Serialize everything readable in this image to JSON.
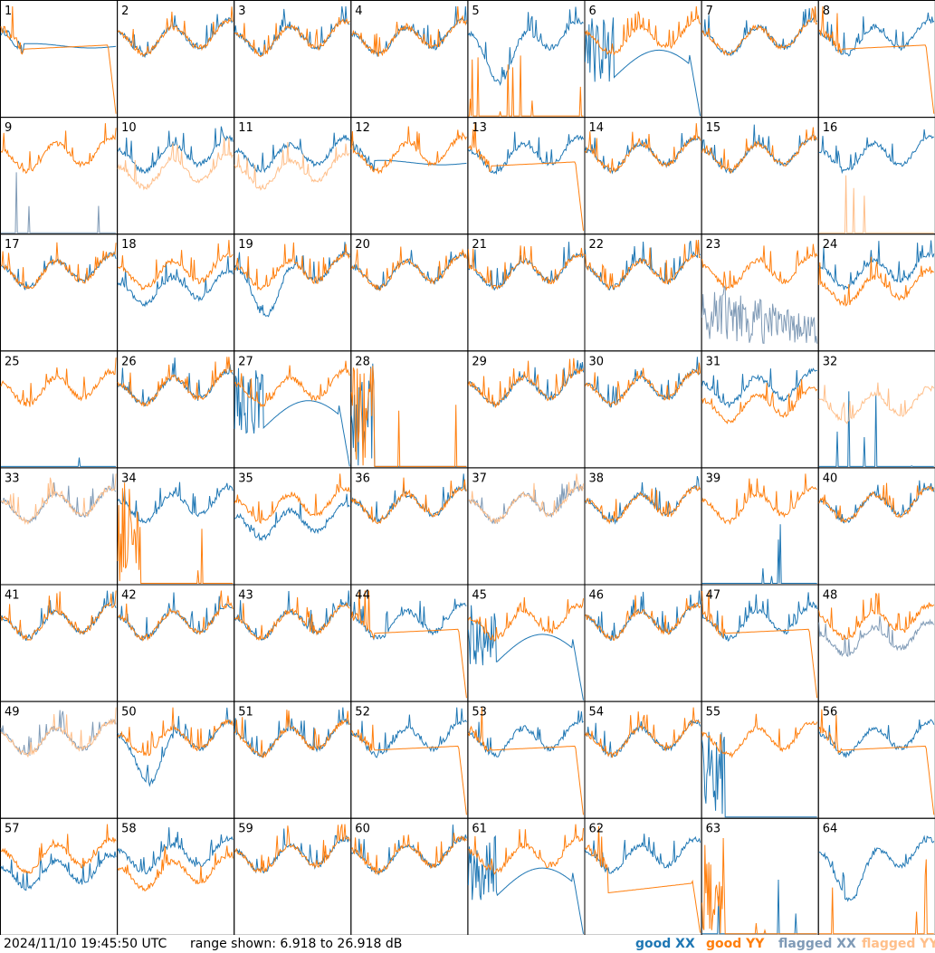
{
  "footer": {
    "timestamp": "2024/11/10 19:45:50 UTC",
    "range_text": "range shown: 6.918 to 26.918 dB"
  },
  "legend": [
    {
      "label": "good XX",
      "color": "#1f77b4"
    },
    {
      "label": "good YY",
      "color": "#ff7f0e"
    },
    {
      "label": "flagged XX",
      "color": "#7f9ab6"
    },
    {
      "label": "flagged YY",
      "color": "#ffbf8a"
    }
  ],
  "chart_data": {
    "type": "line",
    "grid": "8x8 small multiples",
    "y_range_db": [
      6.918,
      26.918
    ],
    "panels": [
      {
        "label": "1",
        "xx": "good",
        "yy": "good",
        "xx_shape": "ripple_lowbump",
        "yy_shape": "smooth_dropoff"
      },
      {
        "label": "2",
        "xx": "good",
        "yy": "good",
        "xx_shape": "ripple",
        "yy_shape": "ripple"
      },
      {
        "label": "3",
        "xx": "good",
        "yy": "good",
        "xx_shape": "ripple",
        "yy_shape": "ripple"
      },
      {
        "label": "4",
        "xx": "good",
        "yy": "good",
        "xx_shape": "ripple",
        "yy_shape": "ripple"
      },
      {
        "label": "5",
        "xx": "good",
        "yy": "good",
        "xx_shape": "ripple_dip",
        "yy_shape": "flat_spikes"
      },
      {
        "label": "6",
        "xx": "good",
        "yy": "good",
        "xx_shape": "smooth_dropoff_deep",
        "yy_shape": "ripple"
      },
      {
        "label": "7",
        "xx": "good",
        "yy": "good",
        "xx_shape": "ripple",
        "yy_shape": "ripple"
      },
      {
        "label": "8",
        "xx": "good",
        "yy": "good",
        "xx_shape": "ripple",
        "yy_shape": "smooth_dropoff"
      },
      {
        "label": "9",
        "xx": "flagged",
        "yy": "good",
        "xx_shape": "flat_spikes",
        "yy_shape": "ripple"
      },
      {
        "label": "10",
        "xx": "good",
        "yy": "flagged",
        "xx_shape": "ripple",
        "yy_shape": "ripple_low"
      },
      {
        "label": "11",
        "xx": "good",
        "yy": "flagged",
        "xx_shape": "ripple",
        "yy_shape": "ripple_low"
      },
      {
        "label": "12",
        "xx": "good",
        "yy": "good",
        "xx_shape": "ripple_lowbump",
        "yy_shape": "ripple"
      },
      {
        "label": "13",
        "xx": "good",
        "yy": "good",
        "xx_shape": "ripple",
        "yy_shape": "smooth_dropoff"
      },
      {
        "label": "14",
        "xx": "good",
        "yy": "good",
        "xx_shape": "ripple",
        "yy_shape": "ripple"
      },
      {
        "label": "15",
        "xx": "good",
        "yy": "good",
        "xx_shape": "ripple",
        "yy_shape": "ripple"
      },
      {
        "label": "16",
        "xx": "good",
        "yy": "flagged",
        "xx_shape": "ripple",
        "yy_shape": "flat_spikes"
      },
      {
        "label": "17",
        "xx": "good",
        "yy": "good",
        "xx_shape": "ripple",
        "yy_shape": "ripple"
      },
      {
        "label": "18",
        "xx": "good",
        "yy": "good",
        "xx_shape": "ripple_low",
        "yy_shape": "ripple"
      },
      {
        "label": "19",
        "xx": "good",
        "yy": "good",
        "xx_shape": "ripple_dip",
        "yy_shape": "ripple"
      },
      {
        "label": "20",
        "xx": "good",
        "yy": "good",
        "xx_shape": "ripple",
        "yy_shape": "ripple"
      },
      {
        "label": "21",
        "xx": "good",
        "yy": "good",
        "xx_shape": "ripple",
        "yy_shape": "ripple"
      },
      {
        "label": "22",
        "xx": "good",
        "yy": "good",
        "xx_shape": "ripple",
        "yy_shape": "ripple"
      },
      {
        "label": "23",
        "xx": "flagged",
        "yy": "good",
        "xx_shape": "noisy_low",
        "yy_shape": "ripple"
      },
      {
        "label": "24",
        "xx": "good",
        "yy": "good",
        "xx_shape": "ripple",
        "yy_shape": "ripple_low"
      },
      {
        "label": "25",
        "xx": "good",
        "yy": "good",
        "xx_shape": "flat_spikes",
        "yy_shape": "ripple"
      },
      {
        "label": "26",
        "xx": "good",
        "yy": "good",
        "xx_shape": "ripple",
        "yy_shape": "ripple"
      },
      {
        "label": "27",
        "xx": "good",
        "yy": "good",
        "xx_shape": "smooth_dropoff_deep",
        "yy_shape": "ripple"
      },
      {
        "label": "28",
        "xx": "good",
        "yy": "good",
        "xx_shape": "dead_spikes",
        "yy_shape": "dead_spikes"
      },
      {
        "label": "29",
        "xx": "good",
        "yy": "good",
        "xx_shape": "ripple",
        "yy_shape": "ripple"
      },
      {
        "label": "30",
        "xx": "good",
        "yy": "good",
        "xx_shape": "ripple",
        "yy_shape": "ripple"
      },
      {
        "label": "31",
        "xx": "good",
        "yy": "good",
        "xx_shape": "ripple",
        "yy_shape": "ripple_low"
      },
      {
        "label": "32",
        "xx": "good",
        "yy": "flagged",
        "xx_shape": "flat_spikes",
        "yy_shape": "ripple_low"
      },
      {
        "label": "33",
        "xx": "flagged",
        "yy": "flagged",
        "xx_shape": "ripple",
        "yy_shape": "ripple"
      },
      {
        "label": "34",
        "xx": "good",
        "yy": "good",
        "xx_shape": "ripple",
        "yy_shape": "dead_spikes"
      },
      {
        "label": "35",
        "xx": "good",
        "yy": "good",
        "xx_shape": "ripple_low",
        "yy_shape": "ripple"
      },
      {
        "label": "36",
        "xx": "good",
        "yy": "good",
        "xx_shape": "ripple",
        "yy_shape": "ripple"
      },
      {
        "label": "37",
        "xx": "flagged",
        "yy": "flagged",
        "xx_shape": "ripple",
        "yy_shape": "ripple"
      },
      {
        "label": "38",
        "xx": "good",
        "yy": "good",
        "xx_shape": "ripple",
        "yy_shape": "ripple"
      },
      {
        "label": "39",
        "xx": "good",
        "yy": "good",
        "xx_shape": "flat_spikes",
        "yy_shape": "ripple"
      },
      {
        "label": "40",
        "xx": "good",
        "yy": "good",
        "xx_shape": "ripple",
        "yy_shape": "ripple"
      },
      {
        "label": "41",
        "xx": "good",
        "yy": "good",
        "xx_shape": "ripple",
        "yy_shape": "ripple"
      },
      {
        "label": "42",
        "xx": "good",
        "yy": "good",
        "xx_shape": "ripple",
        "yy_shape": "ripple"
      },
      {
        "label": "43",
        "xx": "good",
        "yy": "good",
        "xx_shape": "ripple",
        "yy_shape": "ripple"
      },
      {
        "label": "44",
        "xx": "good",
        "yy": "good",
        "xx_shape": "ripple",
        "yy_shape": "smooth_dropoff"
      },
      {
        "label": "45",
        "xx": "good",
        "yy": "good",
        "xx_shape": "smooth_dropoff_deep",
        "yy_shape": "ripple"
      },
      {
        "label": "46",
        "xx": "good",
        "yy": "good",
        "xx_shape": "ripple",
        "yy_shape": "ripple"
      },
      {
        "label": "47",
        "xx": "good",
        "yy": "good",
        "xx_shape": "ripple",
        "yy_shape": "smooth_dropoff"
      },
      {
        "label": "48",
        "xx": "flagged",
        "yy": "good",
        "xx_shape": "ripple_low",
        "yy_shape": "ripple"
      },
      {
        "label": "49",
        "xx": "flagged",
        "yy": "flagged",
        "xx_shape": "ripple",
        "yy_shape": "ripple"
      },
      {
        "label": "50",
        "xx": "good",
        "yy": "good",
        "xx_shape": "ripple_dip",
        "yy_shape": "ripple"
      },
      {
        "label": "51",
        "xx": "good",
        "yy": "good",
        "xx_shape": "ripple",
        "yy_shape": "ripple"
      },
      {
        "label": "52",
        "xx": "good",
        "yy": "good",
        "xx_shape": "ripple",
        "yy_shape": "smooth_dropoff"
      },
      {
        "label": "53",
        "xx": "good",
        "yy": "good",
        "xx_shape": "ripple",
        "yy_shape": "smooth_dropoff"
      },
      {
        "label": "54",
        "xx": "good",
        "yy": "good",
        "xx_shape": "ripple",
        "yy_shape": "ripple"
      },
      {
        "label": "55",
        "xx": "good",
        "yy": "good",
        "xx_shape": "dead_spikes",
        "yy_shape": "ripple"
      },
      {
        "label": "56",
        "xx": "good",
        "yy": "good",
        "xx_shape": "ripple",
        "yy_shape": "smooth_dropoff"
      },
      {
        "label": "57",
        "xx": "good",
        "yy": "good",
        "xx_shape": "ripple_low",
        "yy_shape": "ripple"
      },
      {
        "label": "58",
        "xx": "good",
        "yy": "good",
        "xx_shape": "ripple",
        "yy_shape": "ripple_low"
      },
      {
        "label": "59",
        "xx": "good",
        "yy": "good",
        "xx_shape": "ripple",
        "yy_shape": "ripple"
      },
      {
        "label": "60",
        "xx": "good",
        "yy": "good",
        "xx_shape": "ripple",
        "yy_shape": "ripple"
      },
      {
        "label": "61",
        "xx": "good",
        "yy": "good",
        "xx_shape": "smooth_dropoff_deep",
        "yy_shape": "ripple"
      },
      {
        "label": "62",
        "xx": "good",
        "yy": "good",
        "xx_shape": "ripple",
        "yy_shape": "smooth_dropoff_low"
      },
      {
        "label": "63",
        "xx": "good",
        "yy": "good",
        "xx_shape": "flat_spikes",
        "yy_shape": "dead_spikes"
      },
      {
        "label": "64",
        "xx": "good",
        "yy": "good",
        "xx_shape": "ripple_dip",
        "yy_shape": "flat_spikes"
      }
    ]
  }
}
